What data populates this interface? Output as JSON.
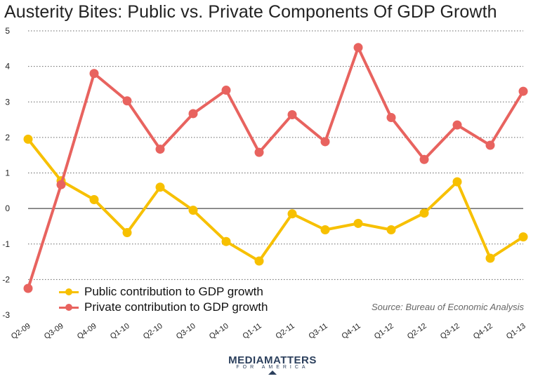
{
  "title": "Austerity Bites: Public vs. Private Components Of GDP Growth",
  "source": "Source: Bureau of Economic Analysis",
  "logo": {
    "main": "MEDIAMATTERS",
    "sub": "FOR AMERICA"
  },
  "colors": {
    "public": "#f7c000",
    "private": "#e8635f",
    "grid": "#555555"
  },
  "chart_data": {
    "type": "line",
    "title": "Austerity Bites: Public vs. Private Components Of GDP Growth",
    "categories": [
      "Q2-09",
      "Q3-09",
      "Q4-09",
      "Q1-10",
      "Q2-10",
      "Q3-10",
      "Q4-10",
      "Q1-11",
      "Q2-11",
      "Q3-11",
      "Q4-11",
      "Q1-12",
      "Q2-12",
      "Q3-12",
      "Q4-12",
      "Q1-13"
    ],
    "ylim": [
      -3,
      5
    ],
    "yticks": [
      -3,
      -2,
      -1,
      0,
      1,
      2,
      3,
      4,
      5
    ],
    "grid": "horizontal dashed",
    "legend": "bottom-left",
    "series": [
      {
        "name": "Public contribution to GDP growth",
        "color": "#f7c000",
        "values": [
          1.95,
          0.78,
          0.25,
          -0.68,
          0.6,
          -0.05,
          -0.93,
          -1.48,
          -0.15,
          -0.6,
          -0.42,
          -0.6,
          -0.13,
          0.75,
          -1.4,
          -0.8
        ]
      },
      {
        "name": "Private contribution to GDP growth",
        "color": "#e8635f",
        "values": [
          -2.25,
          0.67,
          3.8,
          3.03,
          1.67,
          2.67,
          3.33,
          1.58,
          2.64,
          1.88,
          4.53,
          2.56,
          1.38,
          2.35,
          1.78,
          3.3
        ]
      }
    ]
  }
}
